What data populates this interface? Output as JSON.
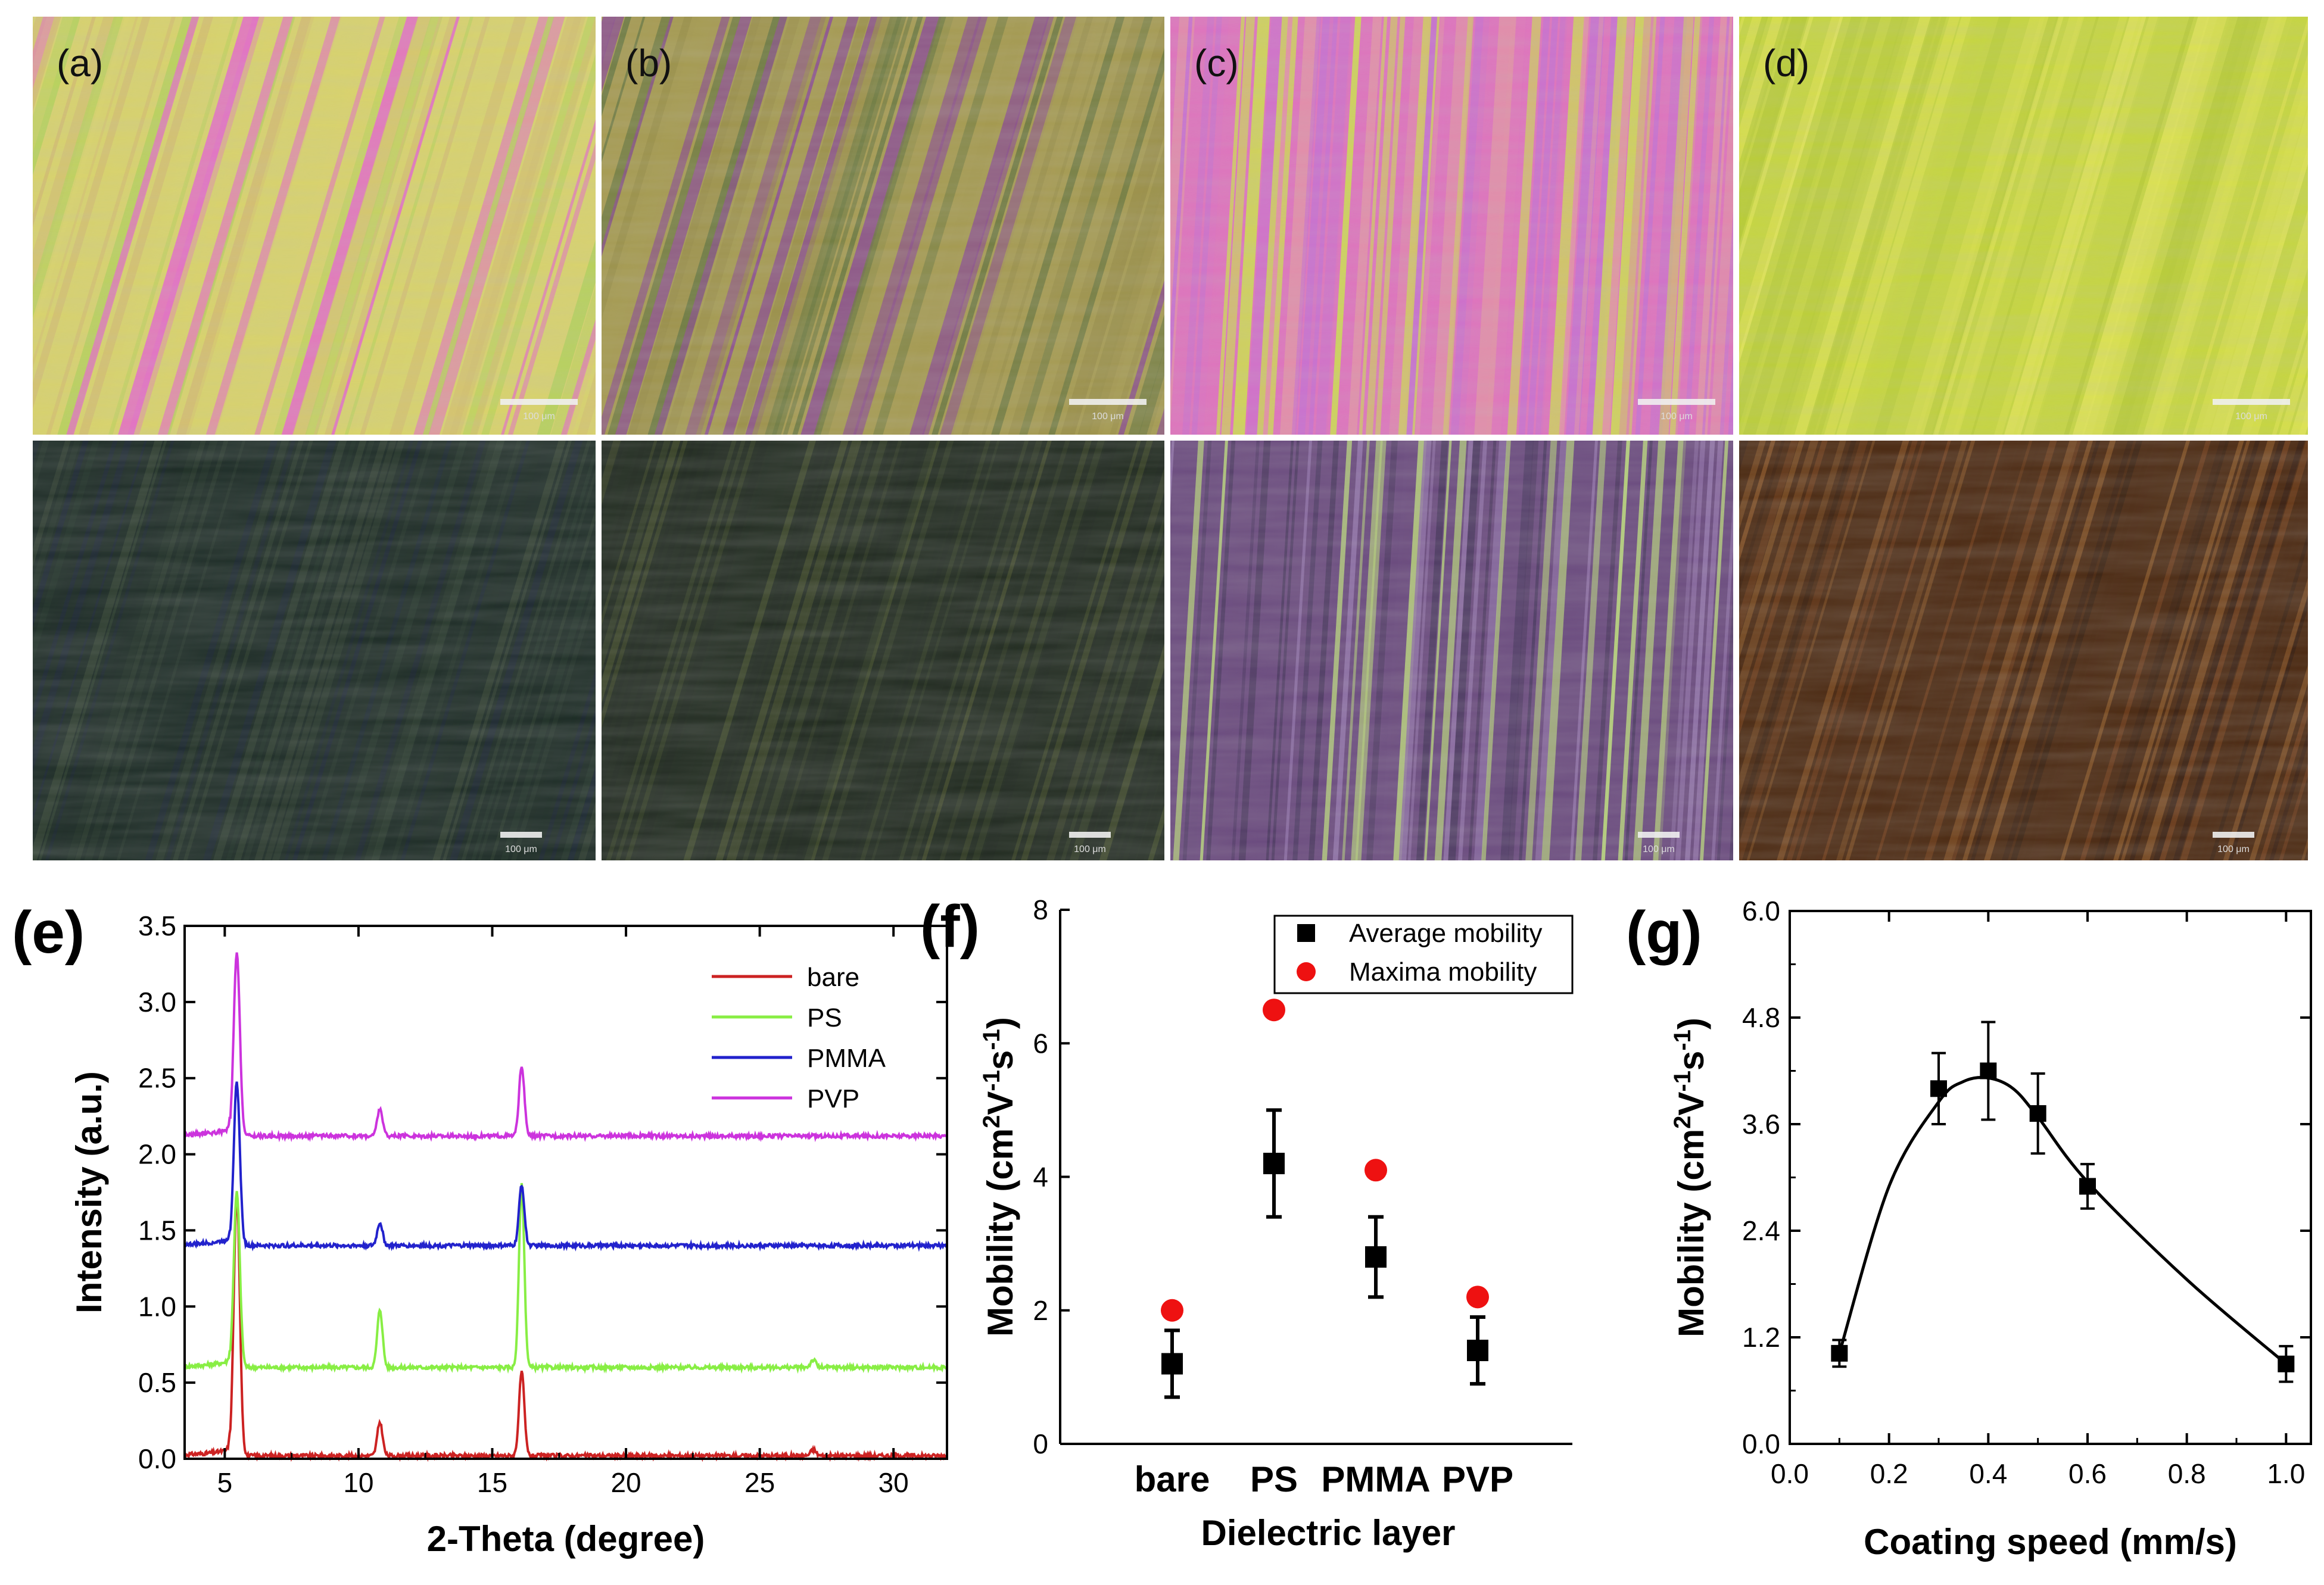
{
  "micro_panels": {
    "labels": [
      "(a)",
      "(b)",
      "(c)",
      "(d)"
    ],
    "scale_bar": "100 μm",
    "colors": {
      "top": [
        [
          "#d9d36a",
          "#e46fc4",
          "#b8d25a",
          "#d4bf6e"
        ],
        [
          "#a59a4f",
          "#8a4f8c",
          "#9a8f48",
          "#6e7a40"
        ],
        [
          "#df72bd",
          "#c86fd0",
          "#cfd25a",
          "#e38fa8"
        ],
        [
          "#c6d63e",
          "#d8e04a",
          "#b8cc36",
          "#dfe453"
        ]
      ],
      "bottom": [
        [
          "#1b2a24",
          "#223329",
          "#1a2630",
          "#2c3c2e"
        ],
        [
          "#202a1f",
          "#2f3a25",
          "#1f281f",
          "#3a4427"
        ],
        [
          "#6a4a7e",
          "#8e6fa6",
          "#4e3a63",
          "#b5d07a"
        ],
        [
          "#4a2810",
          "#6b3a18",
          "#3a2010",
          "#7a4a20"
        ]
      ]
    }
  },
  "chart_data": [
    {
      "panel_label": "(e)",
      "type": "line",
      "xlabel": "2-Theta (degree)",
      "ylabel": "Intensity (a.u.)",
      "xlim": [
        3.5,
        32
      ],
      "ylim": [
        0,
        3.5
      ],
      "xticks": [
        "5",
        "10",
        "15",
        "20",
        "25",
        "30"
      ],
      "yticks": [
        "0.0",
        "0.5",
        "1.0",
        "1.5",
        "2.0",
        "2.5",
        "3.0",
        "3.5"
      ],
      "legend_position": "top-right",
      "series": [
        {
          "name": "bare",
          "color": "#cc2222",
          "baseline": 0.02,
          "peaks": [
            [
              5.45,
              1.72
            ],
            [
              10.8,
              0.22
            ],
            [
              16.1,
              0.55
            ],
            [
              27.0,
              0.04
            ]
          ]
        },
        {
          "name": "PS",
          "color": "#88ee44",
          "baseline": 0.6,
          "peaks": [
            [
              5.45,
              1.15
            ],
            [
              10.8,
              0.38
            ],
            [
              16.1,
              1.2
            ],
            [
              27.0,
              0.05
            ]
          ]
        },
        {
          "name": "PMMA",
          "color": "#2222cc",
          "baseline": 1.4,
          "peaks": [
            [
              5.45,
              1.07
            ],
            [
              10.8,
              0.15
            ],
            [
              16.1,
              0.4
            ]
          ]
        },
        {
          "name": "PVP",
          "color": "#cc33dd",
          "baseline": 2.12,
          "peaks": [
            [
              5.45,
              1.2
            ],
            [
              10.8,
              0.18
            ],
            [
              16.1,
              0.46
            ]
          ]
        }
      ]
    },
    {
      "panel_label": "(f)",
      "type": "scatter",
      "xlabel": "Dielectric layer",
      "ylabel_parts": [
        "Mobility (cm",
        "2",
        "V",
        "-1",
        "s",
        "-1",
        ")"
      ],
      "categories": [
        "bare",
        "PS",
        "PMMA",
        "PVP"
      ],
      "ylim": [
        0,
        8
      ],
      "yticks": [
        "0",
        "2",
        "4",
        "6",
        "8"
      ],
      "legend_position": "top-right",
      "series": [
        {
          "name": "Average mobility",
          "marker": "square",
          "color": "#000000",
          "values": [
            1.2,
            4.2,
            2.8,
            1.4
          ],
          "errors": [
            0.5,
            0.8,
            0.6,
            0.5
          ]
        },
        {
          "name": "Maxima mobility",
          "marker": "circle",
          "color": "#ee1111",
          "values": [
            2.0,
            6.5,
            4.1,
            2.2
          ]
        }
      ]
    },
    {
      "panel_label": "(g)",
      "type": "scatter",
      "xlabel": "Coating speed (mm/s)",
      "ylabel_parts": [
        "Mobility (cm",
        "2",
        "V",
        "-1",
        "s",
        "-1",
        ")"
      ],
      "xlim": [
        0,
        1.05
      ],
      "ylim": [
        0,
        6.0
      ],
      "xticks": [
        "0.0",
        "0.2",
        "0.4",
        "0.6",
        "0.8",
        "1.0"
      ],
      "yticks": [
        "0.0",
        "1.2",
        "2.4",
        "3.6",
        "4.8",
        "6.0"
      ],
      "x": [
        0.1,
        0.3,
        0.4,
        0.5,
        0.6,
        1.0
      ],
      "values": [
        1.02,
        4.0,
        4.2,
        3.72,
        2.9,
        0.9
      ],
      "errors": [
        0.15,
        0.4,
        0.55,
        0.45,
        0.25,
        0.2
      ],
      "fit_curve": [
        [
          0.1,
          1.02
        ],
        [
          0.2,
          2.9
        ],
        [
          0.3,
          3.85
        ],
        [
          0.35,
          4.08
        ],
        [
          0.4,
          4.12
        ],
        [
          0.45,
          4.0
        ],
        [
          0.5,
          3.68
        ],
        [
          0.6,
          2.95
        ],
        [
          0.8,
          1.85
        ],
        [
          1.0,
          0.9
        ]
      ]
    }
  ]
}
